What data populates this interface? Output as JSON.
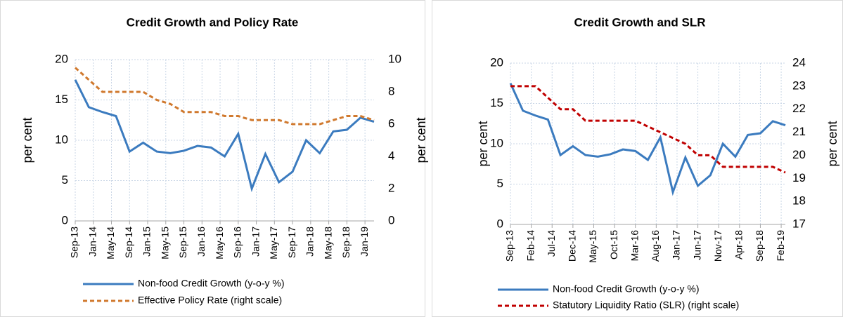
{
  "chart_data": [
    {
      "type": "line",
      "title": "Credit Growth and Policy Rate",
      "x": [
        "2013-09",
        "2013-12",
        "2014-03",
        "2014-06",
        "2014-09",
        "2014-12",
        "2015-03",
        "2015-06",
        "2015-09",
        "2015-12",
        "2016-03",
        "2016-06",
        "2016-09",
        "2016-12",
        "2017-03",
        "2017-06",
        "2017-09",
        "2017-12",
        "2018-03",
        "2018-06",
        "2018-09",
        "2018-12",
        "2019-03"
      ],
      "xlim": [
        "2013-09",
        "2019-03"
      ],
      "xticks": [
        {
          "value": "2013-09",
          "label": "Sep-13"
        },
        {
          "value": "2014-01",
          "label": "Jan-14"
        },
        {
          "value": "2014-05",
          "label": "May-14"
        },
        {
          "value": "2014-09",
          "label": "Sep-14"
        },
        {
          "value": "2015-01",
          "label": "Jan-15"
        },
        {
          "value": "2015-05",
          "label": "May-15"
        },
        {
          "value": "2015-09",
          "label": "Sep-15"
        },
        {
          "value": "2016-01",
          "label": "Jan-16"
        },
        {
          "value": "2016-05",
          "label": "May-16"
        },
        {
          "value": "2016-09",
          "label": "Sep-16"
        },
        {
          "value": "2017-01",
          "label": "Jan-17"
        },
        {
          "value": "2017-05",
          "label": "May-17"
        },
        {
          "value": "2017-09",
          "label": "Sep-17"
        },
        {
          "value": "2018-01",
          "label": "Jan-18"
        },
        {
          "value": "2018-05",
          "label": "May-18"
        },
        {
          "value": "2018-09",
          "label": "Sep-18"
        },
        {
          "value": "2019-01",
          "label": "Jan-19"
        }
      ],
      "ylim": [
        0,
        20
      ],
      "yticks": [
        0,
        5,
        10,
        15,
        20
      ],
      "y_label": "per cent",
      "y2lim": [
        0,
        10
      ],
      "y2ticks": [
        0,
        2,
        4,
        6,
        8,
        10
      ],
      "y2_label": "per cent",
      "grid": true,
      "series": [
        {
          "name": "Non-food Credit Growth (y-o-y %)",
          "color": "#3b7bbf",
          "dash": false,
          "values": [
            17.5,
            14.1,
            13.5,
            13.0,
            8.6,
            9.7,
            8.6,
            8.4,
            8.7,
            9.3,
            9.1,
            8.0,
            10.8,
            4.0,
            8.3,
            4.8,
            6.1,
            10.0,
            8.4,
            11.1,
            11.3,
            12.8,
            12.3
          ]
        },
        {
          "name": "Effective Policy Rate (right scale)",
          "color": "#d0792e",
          "dash": true,
          "axis": "y2",
          "values": [
            9.5,
            8.75,
            8.0,
            8.0,
            8.0,
            8.0,
            7.5,
            7.25,
            6.75,
            6.75,
            6.75,
            6.5,
            6.5,
            6.25,
            6.25,
            6.25,
            6.0,
            6.0,
            6.0,
            6.25,
            6.5,
            6.5,
            6.25
          ]
        }
      ]
    },
    {
      "type": "line",
      "title": "Credit Growth and SLR",
      "x": [
        "2013-09",
        "2013-12",
        "2014-03",
        "2014-06",
        "2014-09",
        "2014-12",
        "2015-03",
        "2015-06",
        "2015-09",
        "2015-12",
        "2016-03",
        "2016-06",
        "2016-09",
        "2016-12",
        "2017-03",
        "2017-06",
        "2017-09",
        "2017-12",
        "2018-03",
        "2018-06",
        "2018-09",
        "2018-12",
        "2019-03"
      ],
      "xlim": [
        "2013-09",
        "2019-03"
      ],
      "xticks": [
        {
          "value": "2013-09",
          "label": "Sep-13"
        },
        {
          "value": "2014-02",
          "label": "Feb-14"
        },
        {
          "value": "2014-07",
          "label": "Jul-14"
        },
        {
          "value": "2014-12",
          "label": "Dec-14"
        },
        {
          "value": "2015-05",
          "label": "May-15"
        },
        {
          "value": "2015-10",
          "label": "Oct-15"
        },
        {
          "value": "2016-03",
          "label": "Mar-16"
        },
        {
          "value": "2016-08",
          "label": "Aug-16"
        },
        {
          "value": "2017-01",
          "label": "Jan-17"
        },
        {
          "value": "2017-06",
          "label": "Jun-17"
        },
        {
          "value": "2017-11",
          "label": "Nov-17"
        },
        {
          "value": "2018-04",
          "label": "Apr-18"
        },
        {
          "value": "2018-09",
          "label": "Sep-18"
        },
        {
          "value": "2019-02",
          "label": "Feb-19"
        }
      ],
      "ylim": [
        0,
        20
      ],
      "yticks": [
        0,
        5,
        10,
        15,
        20
      ],
      "y_label": "per cent",
      "y2lim": [
        17,
        24
      ],
      "y2ticks": [
        17,
        18,
        19,
        20,
        21,
        22,
        23,
        24
      ],
      "y2_label": "per cent",
      "grid": true,
      "series": [
        {
          "name": "Non-food Credit Growth (y-o-y %)",
          "color": "#3b7bbf",
          "dash": false,
          "values": [
            17.5,
            14.1,
            13.5,
            13.0,
            8.6,
            9.7,
            8.6,
            8.4,
            8.7,
            9.3,
            9.1,
            8.0,
            10.8,
            4.0,
            8.3,
            4.8,
            6.1,
            10.0,
            8.4,
            11.1,
            11.3,
            12.8,
            12.3
          ]
        },
        {
          "name": "Statutory Liquidity Ratio (SLR) (right scale)",
          "color": "#c00000",
          "dash": true,
          "axis": "y2",
          "values": [
            23,
            23,
            23,
            22.5,
            22,
            22,
            21.5,
            21.5,
            21.5,
            21.5,
            21.5,
            21.25,
            21,
            20.75,
            20.5,
            20,
            20,
            19.5,
            19.5,
            19.5,
            19.5,
            19.5,
            19.25
          ]
        }
      ]
    }
  ]
}
